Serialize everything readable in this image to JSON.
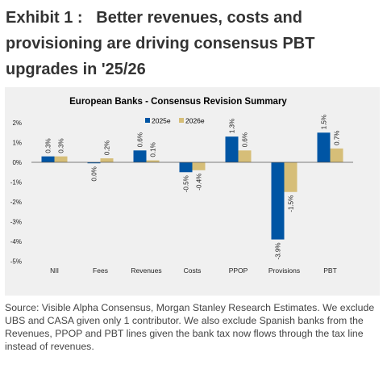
{
  "exhibit": {
    "label": "Exhibit 1 :",
    "title": "Better revenues, costs and provisioning are driving consensus PBT upgrades in '25/26"
  },
  "source_note": "Source: Visible Alpha Consensus, Morgan Stanley Research Estimates. We exclude UBS and CASA given only 1 contributor. We also exclude Spanish banks from the Revenues, PPOP and PBT lines given the bank tax now flows through the tax line instead of revenues.",
  "chart_data": {
    "type": "bar",
    "title": "European Banks - Consensus Revision Summary",
    "categories": [
      "NII",
      "Fees",
      "Revenues",
      "Costs",
      "PPOP",
      "Provisions",
      "PBT"
    ],
    "series": [
      {
        "name": "2025e",
        "color": "#0055a4",
        "values": [
          0.3,
          -0.05,
          0.6,
          -0.5,
          1.3,
          -3.9,
          1.5
        ],
        "labels": [
          "0.3%",
          "0.0%",
          "0.6%",
          "-0.5%",
          "1.3%",
          "-3.9%",
          "1.5%"
        ]
      },
      {
        "name": "2026e",
        "color": "#d6be78",
        "values": [
          0.3,
          0.2,
          0.1,
          -0.4,
          0.6,
          -1.5,
          0.7
        ],
        "labels": [
          "0.3%",
          "0.2%",
          "0.1%",
          "-0.4%",
          "0.6%",
          "-1.5%",
          "0.7%"
        ]
      }
    ],
    "yticks": [
      2,
      1,
      0,
      -1,
      -2,
      -3,
      -4,
      -5
    ],
    "ytick_labels": [
      "2%",
      "1%",
      "0%",
      "-1%",
      "-2%",
      "-3%",
      "-4%",
      "-5%"
    ],
    "ylim": [
      -5,
      2
    ],
    "grid": false,
    "legend_position": "top-center"
  }
}
